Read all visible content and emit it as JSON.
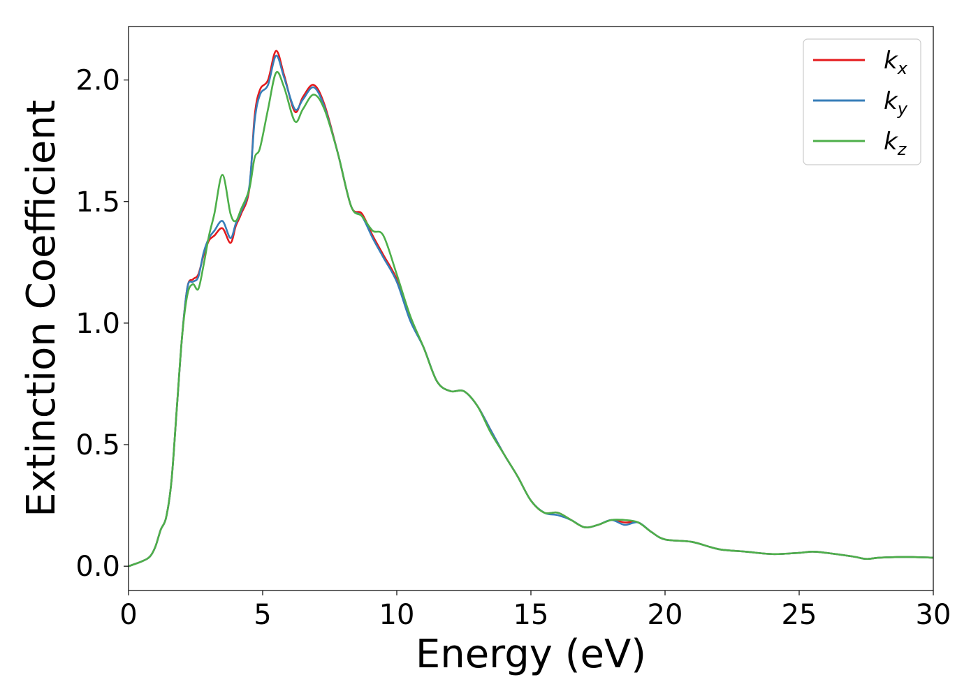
{
  "chart_data": {
    "type": "line",
    "title": "",
    "xlabel": "Energy (eV)",
    "ylabel": "Extinction Coefficient",
    "xlim": [
      0,
      30
    ],
    "ylim": [
      -0.1,
      2.22
    ],
    "xticks": [
      0,
      5,
      10,
      15,
      20,
      25,
      30
    ],
    "xtick_labels": [
      "0",
      "5",
      "10",
      "15",
      "20",
      "25",
      "30"
    ],
    "yticks": [
      0.0,
      0.5,
      1.0,
      1.5,
      2.0
    ],
    "ytick_labels": [
      "0.0",
      "0.5",
      "1.0",
      "1.5",
      "2.0"
    ],
    "grid": false,
    "legend_position": "top-right",
    "x": [
      0,
      0.5,
      0.8,
      1.0,
      1.2,
      1.4,
      1.6,
      1.8,
      2.0,
      2.2,
      2.4,
      2.6,
      2.8,
      3.0,
      3.2,
      3.5,
      3.8,
      4.0,
      4.2,
      4.5,
      4.7,
      4.9,
      5.2,
      5.5,
      5.8,
      6.2,
      6.5,
      6.9,
      7.3,
      7.8,
      8.3,
      8.7,
      9.1,
      9.5,
      10.0,
      10.5,
      11.0,
      11.5,
      12.0,
      12.5,
      13.0,
      13.5,
      14.0,
      14.5,
      15.0,
      15.5,
      16.0,
      16.5,
      17.0,
      17.5,
      18.0,
      18.5,
      19.0,
      19.5,
      20.0,
      21.0,
      22.0,
      23.0,
      24.0,
      25.0,
      25.5,
      26.0,
      27.0,
      27.5,
      28.0,
      29.0,
      30.0
    ],
    "series": [
      {
        "name": "k_x",
        "color": "#e41a1c",
        "values": [
          0.0,
          0.02,
          0.04,
          0.08,
          0.15,
          0.2,
          0.35,
          0.65,
          0.95,
          1.15,
          1.18,
          1.2,
          1.28,
          1.34,
          1.36,
          1.39,
          1.33,
          1.4,
          1.45,
          1.55,
          1.85,
          1.96,
          2.0,
          2.12,
          2.02,
          1.87,
          1.93,
          1.98,
          1.9,
          1.7,
          1.48,
          1.45,
          1.36,
          1.28,
          1.18,
          1.02,
          0.9,
          0.76,
          0.72,
          0.72,
          0.66,
          0.56,
          0.46,
          0.37,
          0.27,
          0.22,
          0.22,
          0.19,
          0.16,
          0.17,
          0.19,
          0.18,
          0.18,
          0.14,
          0.11,
          0.1,
          0.07,
          0.06,
          0.05,
          0.055,
          0.06,
          0.055,
          0.04,
          0.03,
          0.035,
          0.038,
          0.035
        ]
      },
      {
        "name": "k_y",
        "color": "#377eb8",
        "values": [
          0.0,
          0.02,
          0.04,
          0.08,
          0.15,
          0.2,
          0.35,
          0.65,
          0.95,
          1.15,
          1.17,
          1.19,
          1.29,
          1.35,
          1.38,
          1.42,
          1.35,
          1.41,
          1.46,
          1.56,
          1.83,
          1.94,
          1.98,
          2.1,
          2.01,
          1.88,
          1.92,
          1.97,
          1.89,
          1.7,
          1.48,
          1.44,
          1.35,
          1.27,
          1.17,
          1.01,
          0.9,
          0.76,
          0.72,
          0.72,
          0.66,
          0.56,
          0.46,
          0.37,
          0.27,
          0.22,
          0.21,
          0.19,
          0.16,
          0.17,
          0.19,
          0.17,
          0.18,
          0.14,
          0.11,
          0.1,
          0.07,
          0.06,
          0.05,
          0.055,
          0.06,
          0.055,
          0.04,
          0.03,
          0.035,
          0.038,
          0.035
        ]
      },
      {
        "name": "k_z",
        "color": "#4daf4a",
        "values": [
          0.0,
          0.02,
          0.04,
          0.08,
          0.15,
          0.2,
          0.35,
          0.65,
          0.95,
          1.12,
          1.16,
          1.14,
          1.24,
          1.36,
          1.45,
          1.61,
          1.45,
          1.42,
          1.47,
          1.55,
          1.68,
          1.72,
          1.88,
          2.03,
          1.97,
          1.83,
          1.88,
          1.94,
          1.88,
          1.7,
          1.48,
          1.44,
          1.38,
          1.36,
          1.2,
          1.03,
          0.9,
          0.76,
          0.72,
          0.72,
          0.66,
          0.55,
          0.46,
          0.37,
          0.27,
          0.22,
          0.22,
          0.19,
          0.16,
          0.17,
          0.19,
          0.19,
          0.18,
          0.14,
          0.11,
          0.1,
          0.07,
          0.06,
          0.05,
          0.055,
          0.06,
          0.055,
          0.04,
          0.03,
          0.035,
          0.038,
          0.035
        ]
      }
    ]
  },
  "legend": {
    "items": [
      {
        "base": "k",
        "sub": "x",
        "color": "#e41a1c"
      },
      {
        "base": "k",
        "sub": "y",
        "color": "#377eb8"
      },
      {
        "base": "k",
        "sub": "z",
        "color": "#4daf4a"
      }
    ]
  }
}
